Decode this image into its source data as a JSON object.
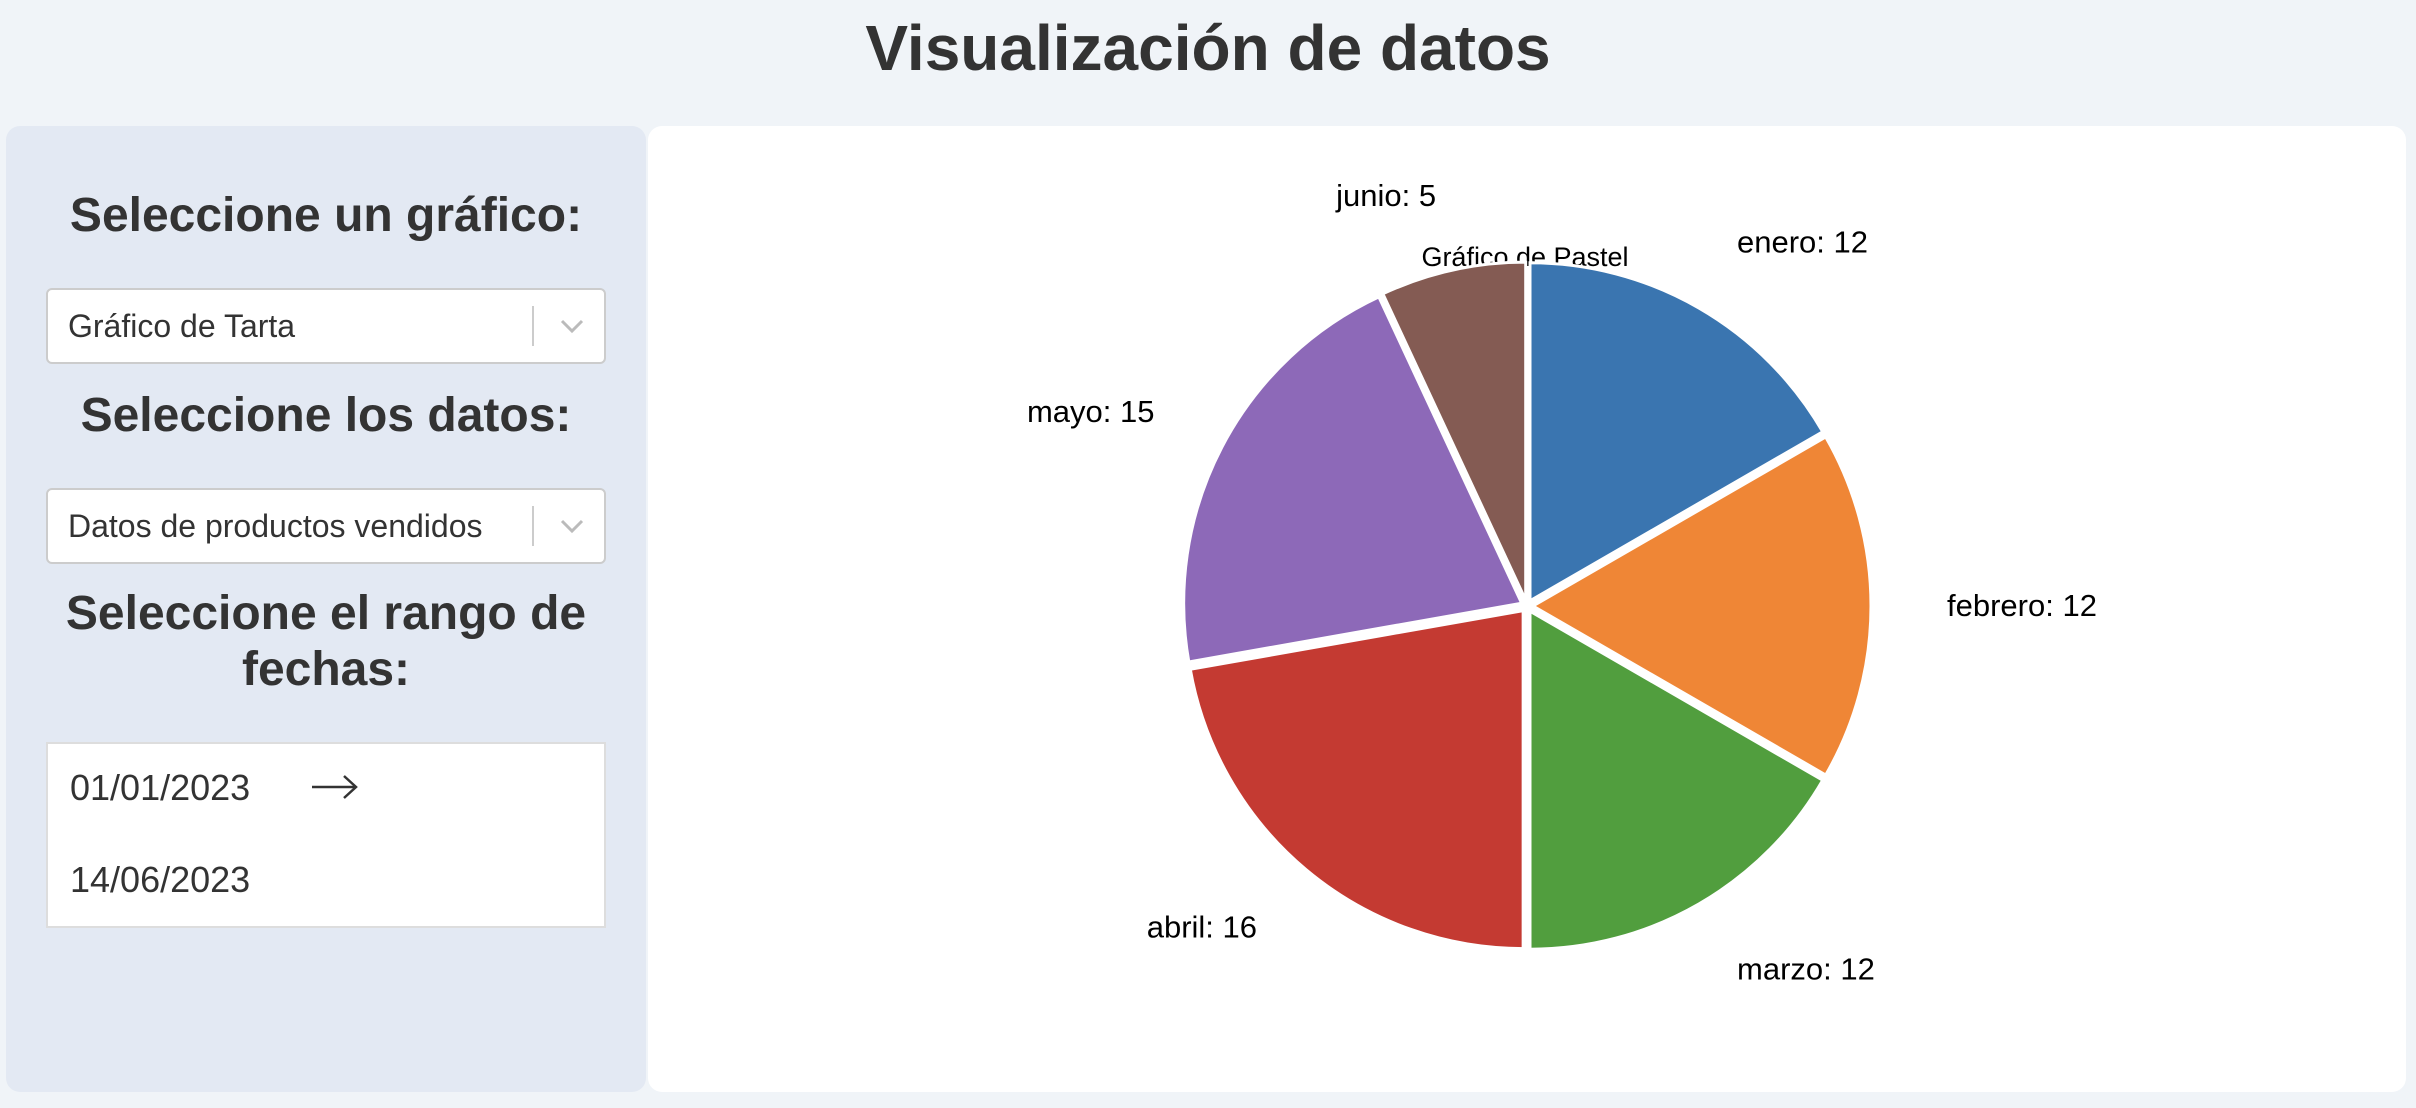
{
  "page": {
    "title": "Visualización de datos"
  },
  "sidebar": {
    "chart_select_heading": "Seleccione un gráfico:",
    "chart_select_value": "Gráfico de Tarta",
    "data_select_heading": "Seleccione los datos:",
    "data_select_value": "Datos de productos vendidos",
    "date_range_heading": "Seleccione el rango de fechas:",
    "date_start": "01/01/2023",
    "date_end": "14/06/2023"
  },
  "chart_data": {
    "type": "pie",
    "title": "Gráfico de Pastel",
    "categories": [
      "enero",
      "febrero",
      "marzo",
      "abril",
      "mayo",
      "junio"
    ],
    "values": [
      12,
      12,
      12,
      16,
      15,
      5
    ],
    "labels": [
      "enero: 12",
      "febrero: 12",
      "marzo: 12",
      "abril: 16",
      "mayo: 15",
      "junio: 5"
    ],
    "colors": [
      "#3a75b0",
      "#ef8636",
      "#519e3e",
      "#c43a32",
      "#8d69b8",
      "#845b53"
    ],
    "start_angle": "top, clockwise"
  }
}
